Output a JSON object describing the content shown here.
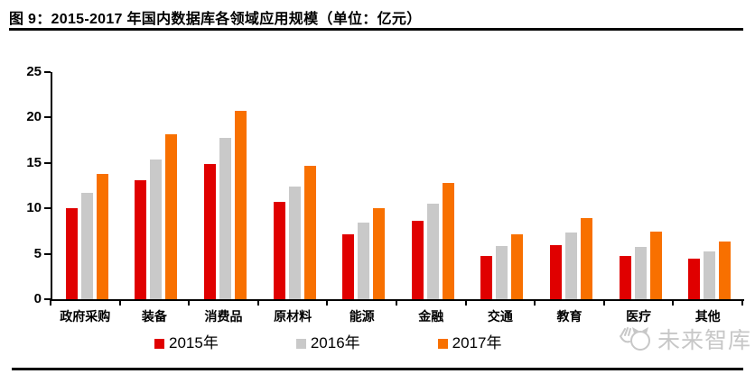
{
  "header": {
    "title": "图 9：2015-2017 年国内数据库各领域应用规模（单位：亿元）"
  },
  "chart_data": {
    "type": "bar",
    "title": "2015-2017 年国内数据库各领域应用规模",
    "unit": "亿元",
    "categories": [
      "政府采购",
      "装备",
      "消费品",
      "原材料",
      "能源",
      "金融",
      "交通",
      "教育",
      "医疗",
      "其他"
    ],
    "series": [
      {
        "name": "2015年",
        "color": "#e00000",
        "values": [
          10.0,
          13.1,
          14.9,
          10.7,
          7.1,
          8.6,
          4.8,
          6.0,
          4.8,
          4.5
        ]
      },
      {
        "name": "2016年",
        "color": "#c9c9c9",
        "values": [
          11.7,
          15.4,
          17.8,
          12.4,
          8.4,
          10.5,
          5.9,
          7.3,
          5.8,
          5.3
        ]
      },
      {
        "name": "2017年",
        "color": "#f87000",
        "values": [
          13.8,
          18.2,
          20.7,
          14.7,
          10.0,
          12.8,
          7.1,
          8.9,
          7.4,
          6.3
        ]
      }
    ],
    "ylim": [
      0,
      25
    ],
    "yticks": [
      0,
      5,
      10,
      15,
      20,
      25
    ],
    "grid": false,
    "legend_position": "bottom"
  },
  "watermark": {
    "text": "未来智库",
    "logo": "mascot-logo"
  },
  "colors": {
    "axis": "#000000",
    "text": "#000000",
    "watermark": "#c7c7c7"
  }
}
